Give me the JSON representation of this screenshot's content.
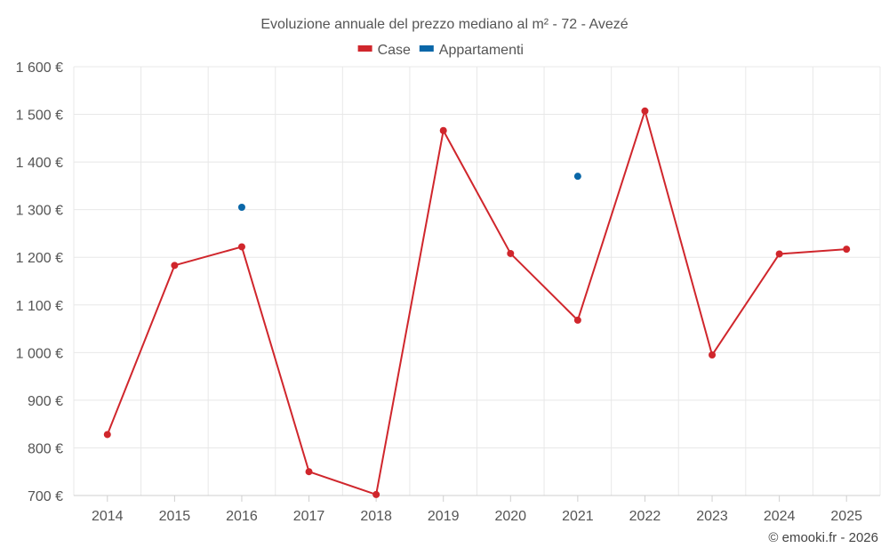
{
  "chart_data": {
    "type": "line",
    "title": "Evoluzione annuale del prezzo mediano al m² - 72 - Avezé",
    "categories": [
      "2014",
      "2015",
      "2016",
      "2017",
      "2018",
      "2019",
      "2020",
      "2021",
      "2022",
      "2023",
      "2024",
      "2025"
    ],
    "series": [
      {
        "name": "Case",
        "color": "#d0262c",
        "values": [
          828,
          1183,
          1222,
          750,
          702,
          1466,
          1208,
          1068,
          1507,
          995,
          1207,
          1217
        ]
      },
      {
        "name": "Appartamenti",
        "color": "#0a67a8",
        "values": [
          null,
          null,
          1305,
          null,
          null,
          null,
          null,
          1370,
          null,
          null,
          null,
          null
        ]
      }
    ],
    "ylim": [
      700,
      1600
    ],
    "yticks": [
      700,
      800,
      900,
      1000,
      1100,
      1200,
      1300,
      1400,
      1500,
      1600
    ],
    "ytick_labels": [
      "700 €",
      "800 €",
      "900 €",
      "1 000 €",
      "1 100 €",
      "1 200 €",
      "1 300 €",
      "1 400 €",
      "1 500 €",
      "1 600 €"
    ],
    "legend_position": "top-center",
    "grid": true
  },
  "credit": "© emooki.fr - 2026"
}
